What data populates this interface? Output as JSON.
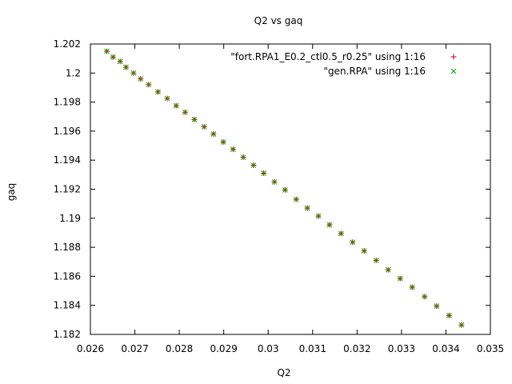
{
  "chart_data": {
    "type": "scatter",
    "title": "Q2 vs gaq",
    "xlabel": "Q2",
    "ylabel": "gaq",
    "xlim": [
      0.026,
      0.035
    ],
    "ylim": [
      1.182,
      1.202
    ],
    "xticks": [
      "0.026",
      "0.027",
      "0.028",
      "0.029",
      "0.03",
      "0.031",
      "0.032",
      "0.033",
      "0.034",
      "0.035"
    ],
    "yticks": [
      "1.182",
      "1.184",
      "1.186",
      "1.188",
      "1.19",
      "1.192",
      "1.194",
      "1.196",
      "1.198",
      "1.2",
      "1.202"
    ],
    "grid": false,
    "legend_position": "top-right",
    "series": [
      {
        "name": "\"fort.RPA1_E0.2_ctl0.5_r0.25\" using 1:16",
        "marker": "plus",
        "color": "#cc0000",
        "x": [
          0.02637,
          0.02651,
          0.02667,
          0.0268,
          0.02697,
          0.02713,
          0.02731,
          0.02752,
          0.02773,
          0.02793,
          0.02813,
          0.02834,
          0.02856,
          0.02877,
          0.02899,
          0.02921,
          0.02944,
          0.02967,
          0.0299,
          0.03014,
          0.03038,
          0.03063,
          0.03088,
          0.03113,
          0.03138,
          0.03164,
          0.0319,
          0.03216,
          0.03243,
          0.0327,
          0.03297,
          0.03324,
          0.03352,
          0.03379,
          0.03407,
          0.03435
        ],
        "y": [
          1.2015,
          1.2011,
          1.2008,
          1.2004,
          1.2,
          1.1996,
          1.1992,
          1.1987,
          1.19825,
          1.19775,
          1.1973,
          1.1968,
          1.1963,
          1.1958,
          1.19525,
          1.19475,
          1.1942,
          1.19365,
          1.1931,
          1.1925,
          1.19195,
          1.1913,
          1.1907,
          1.19015,
          1.18955,
          1.18895,
          1.18835,
          1.18775,
          1.1871,
          1.18645,
          1.18585,
          1.18525,
          1.1846,
          1.18395,
          1.1833,
          1.18265
        ]
      },
      {
        "name": "\"gen.RPA\" using 1:16",
        "marker": "cross",
        "color": "#00a000",
        "x": [
          0.02637,
          0.02651,
          0.02667,
          0.0268,
          0.02697,
          0.02713,
          0.02731,
          0.02752,
          0.02773,
          0.02793,
          0.02813,
          0.02834,
          0.02856,
          0.02877,
          0.02899,
          0.02921,
          0.02944,
          0.02967,
          0.0299,
          0.03014,
          0.03038,
          0.03063,
          0.03088,
          0.03113,
          0.03138,
          0.03164,
          0.0319,
          0.03216,
          0.03243,
          0.0327,
          0.03297,
          0.03324,
          0.03352,
          0.03379,
          0.03407,
          0.03435
        ],
        "y": [
          1.2015,
          1.2011,
          1.2008,
          1.2004,
          1.2,
          1.1996,
          1.1992,
          1.1987,
          1.19825,
          1.19775,
          1.1973,
          1.1968,
          1.1963,
          1.1958,
          1.19525,
          1.19475,
          1.1942,
          1.19365,
          1.1931,
          1.1925,
          1.19195,
          1.1913,
          1.1907,
          1.19015,
          1.18955,
          1.18895,
          1.18835,
          1.18775,
          1.1871,
          1.18645,
          1.18585,
          1.18525,
          1.1846,
          1.18395,
          1.1833,
          1.18265
        ]
      }
    ]
  }
}
